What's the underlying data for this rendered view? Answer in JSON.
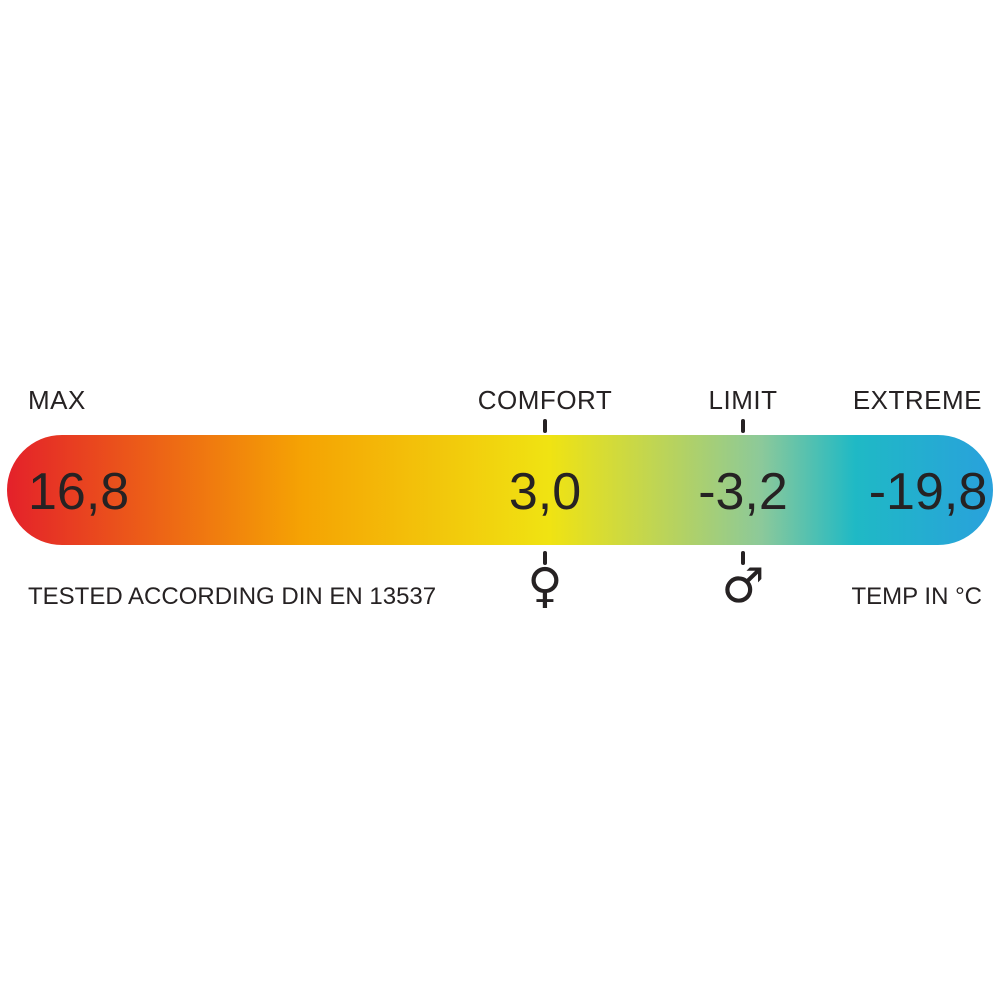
{
  "chart_data": {
    "type": "bar",
    "categories": [
      "MAX",
      "COMFORT",
      "LIMIT",
      "EXTREME"
    ],
    "values": [
      16.8,
      3.0,
      -3.2,
      -19.8
    ],
    "value_labels": [
      "16,8",
      "3,0",
      "-3,2",
      "-19,8"
    ],
    "title": "",
    "xlabel": "",
    "ylabel": "TEMP IN °C",
    "footnote": "TESTED ACCORDING DIN EN 13537",
    "legend_position": "none",
    "grid": false,
    "marker_symbols": {
      "comfort": "♀",
      "limit": "♂"
    },
    "gradient_stops": [
      {
        "pos": 0.0,
        "color": "#e4212a"
      },
      {
        "pos": 0.3,
        "color": "#f5a303"
      },
      {
        "pos": 0.55,
        "color": "#f0e312"
      },
      {
        "pos": 0.68,
        "color": "#b5d261"
      },
      {
        "pos": 0.765,
        "color": "#8cc99a"
      },
      {
        "pos": 0.86,
        "color": "#1fb9c5"
      },
      {
        "pos": 1.0,
        "color": "#29a1dc"
      }
    ]
  },
  "scale": {
    "segments": [
      {
        "label": "MAX",
        "value": "16,8"
      },
      {
        "label": "COMFORT",
        "value": "3,0",
        "symbol": "♀"
      },
      {
        "label": "LIMIT",
        "value": "-3,2",
        "symbol": "♂"
      },
      {
        "label": "EXTREME",
        "value": "-19,8"
      }
    ],
    "footnote": "TESTED ACCORDING DIN EN 13537",
    "unit": "TEMP IN °C",
    "text_color": "#262223",
    "background_color": "#ffffff"
  }
}
